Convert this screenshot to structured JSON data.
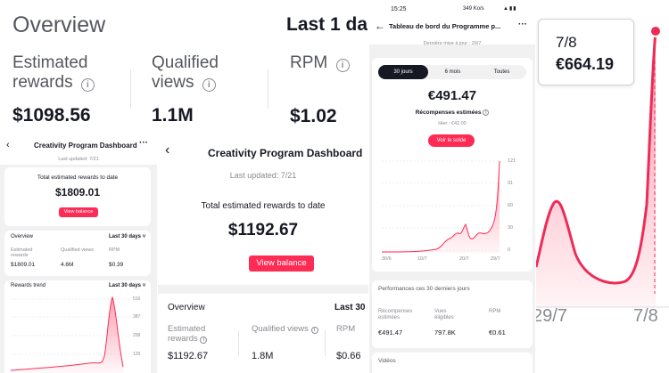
{
  "p1": {
    "title": "Overview",
    "period": "Last 1 day",
    "metrics": [
      {
        "label1": "Estimated",
        "label2": "rewards",
        "value": "$1098.56"
      },
      {
        "label1": "Qualified",
        "label2": "views",
        "value": "1.1M"
      },
      {
        "label1": "RPM",
        "label2": "",
        "value": "$1.02"
      }
    ]
  },
  "p2": {
    "title": "Creativity Program Dashboard",
    "updated": "Last updated: 7/21",
    "total_label": "Total estimated rewards to date",
    "total_value": "$1809.01",
    "button": "View balance",
    "overview": {
      "title": "Overview",
      "period": "Last 30 days",
      "metrics": [
        {
          "label1": "Estimated",
          "label2": "rewards",
          "value": "$1809.01"
        },
        {
          "label1": "Qualified views",
          "label2": "",
          "value": "4.6M"
        },
        {
          "label1": "RPM",
          "label2": "",
          "value": "$0.39"
        }
      ]
    },
    "trend": {
      "title": "Rewards trend",
      "period": "Last 30 days",
      "y_ticks": [
        "516",
        "387",
        "258",
        "129"
      ]
    }
  },
  "p3": {
    "title": "Creativity Program Dashboard",
    "updated": "Last updated: 7/21",
    "total_label": "Total estimated rewards to date",
    "total_value": "$1192.67",
    "button": "View balance",
    "overview": {
      "title": "Overview",
      "period": "Last 30",
      "metrics": [
        {
          "label1": "Estimated",
          "label2": "rewards",
          "value": "$1192.67"
        },
        {
          "label1": "Qualified views",
          "label2": "",
          "value": "1.8M"
        },
        {
          "label1": "RPM",
          "label2": "",
          "value": "$0.66"
        }
      ]
    }
  },
  "p4": {
    "status_time": "15:25",
    "status_speed": "349 Ko/s",
    "title": "Tableau de bord du Programme p...",
    "updated": "Dernière mise à jour : 29/7",
    "tabs": [
      "30 jours",
      "6 mois",
      "Toutes"
    ],
    "total_value": "€491.47",
    "total_label": "Récompenses estimées",
    "yesterday": "Hier : €42.00",
    "button": "Voir le solde",
    "y_ticks": [
      "121",
      "91",
      "60",
      "30",
      "0"
    ],
    "x_ticks": [
      "30/6",
      "10/7",
      "20/7",
      "29/7"
    ],
    "perf_title": "Performances ces 30 derniers jours",
    "metrics": [
      {
        "label1": "Récompenses",
        "label2": "estimées",
        "value": "€491.47"
      },
      {
        "label1": "Vues",
        "label2": "éligibles",
        "value": "797.8K"
      },
      {
        "label1": "RPM",
        "label2": "",
        "value": "€0.61"
      }
    ],
    "videos": "Vidéos"
  },
  "p5": {
    "tooltip_date": "7/8",
    "tooltip_value": "€664.19",
    "x_ticks": [
      "29/7",
      "7/8"
    ]
  },
  "colors": {
    "accent": "#fe2c55",
    "text": "#161823",
    "muted": "#8a8b91",
    "line": "#ee2b57"
  }
}
